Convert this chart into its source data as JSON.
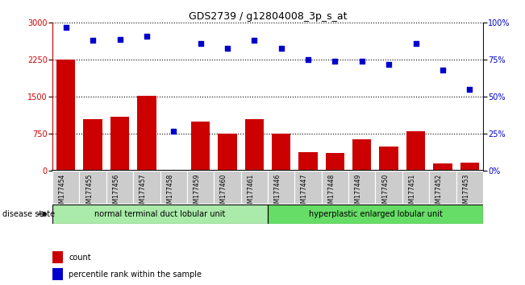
{
  "title": "GDS2739 / g12804008_3p_s_at",
  "categories": [
    "GSM177454",
    "GSM177455",
    "GSM177456",
    "GSM177457",
    "GSM177458",
    "GSM177459",
    "GSM177460",
    "GSM177461",
    "GSM177446",
    "GSM177447",
    "GSM177448",
    "GSM177449",
    "GSM177450",
    "GSM177451",
    "GSM177452",
    "GSM177453"
  ],
  "bar_values": [
    2250,
    1050,
    1100,
    1530,
    30,
    1000,
    750,
    1050,
    750,
    380,
    370,
    650,
    500,
    800,
    150,
    175
  ],
  "percentile_values": [
    97,
    88,
    89,
    91,
    27,
    86,
    83,
    88,
    83,
    75,
    74,
    74,
    72,
    86,
    68,
    55
  ],
  "bar_color": "#cc0000",
  "dot_color": "#0000cc",
  "ylim_left": [
    0,
    3000
  ],
  "ylim_right": [
    0,
    100
  ],
  "yticks_left": [
    0,
    750,
    1500,
    2250,
    3000
  ],
  "yticks_right": [
    0,
    25,
    50,
    75,
    100
  ],
  "ytick_labels_right": [
    "0%",
    "25%",
    "50%",
    "75%",
    "100%"
  ],
  "group1_label": "normal terminal duct lobular unit",
  "group2_label": "hyperplastic enlarged lobular unit",
  "group1_count": 8,
  "group2_count": 8,
  "disease_state_label": "disease state",
  "legend_bar_label": "count",
  "legend_dot_label": "percentile rank within the sample",
  "bg_color": "#ffffff",
  "plot_bg_color": "#ffffff",
  "group1_color": "#aaeaaa",
  "group2_color": "#66dd66",
  "xticklabel_bg": "#cccccc",
  "title_color": "#000000",
  "left_axis_color": "#cc0000",
  "right_axis_color": "#0000cc"
}
